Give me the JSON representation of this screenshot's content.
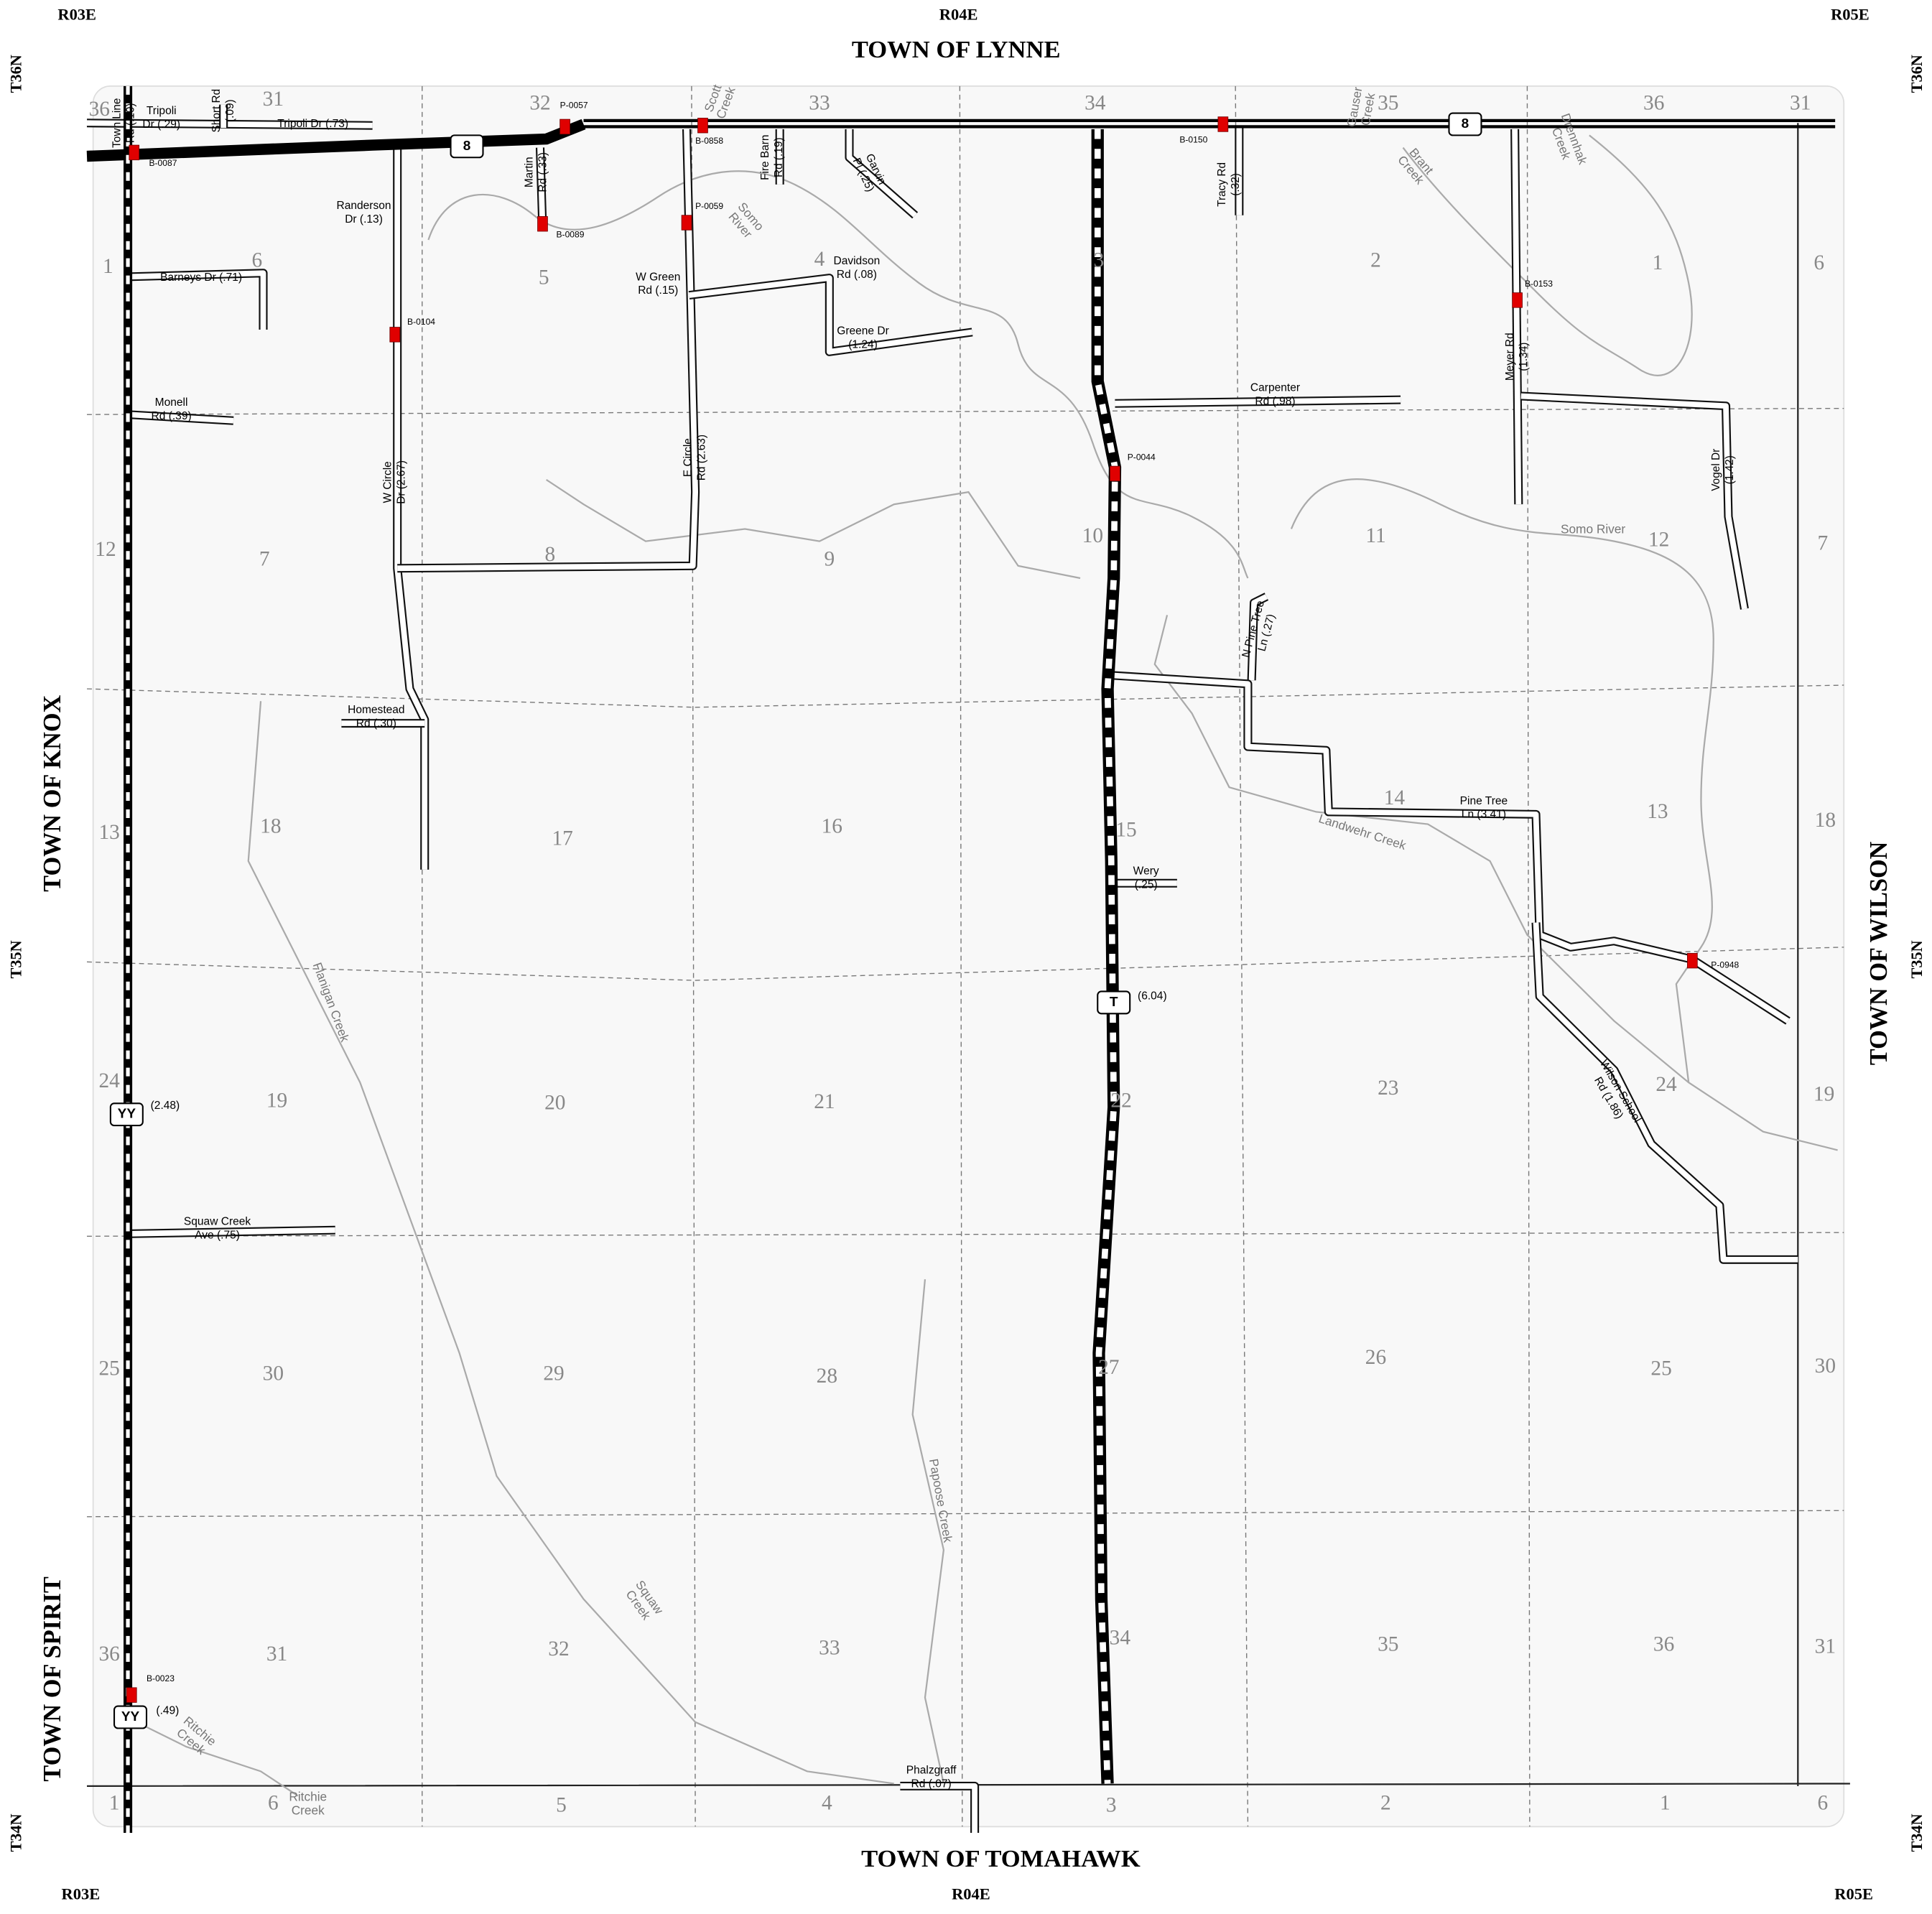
{
  "corner_labels": [
    "R03E",
    "R04E",
    "R05E",
    "T36N",
    "T35N",
    "T34N",
    "T36N",
    "T35N",
    "T34N",
    "R03E",
    "R04E",
    "R05E"
  ],
  "towns": [
    "TOWN OF LYNNE",
    "TOWN OF TOMAHAWK",
    "TOWN OF KNOX",
    "TOWN OF SPIRIT",
    "TOWN OF WILSON"
  ],
  "sections": [
    "36",
    "31",
    "32",
    "33",
    "34",
    "35",
    "36",
    "31",
    "1",
    "6",
    "5",
    "4",
    "3",
    "2",
    "1",
    "6",
    "12",
    "7",
    "8",
    "9",
    "10",
    "11",
    "12",
    "7",
    "13",
    "18",
    "17",
    "16",
    "15",
    "14",
    "13",
    "18",
    "24",
    "19",
    "20",
    "21",
    "22",
    "23",
    "24",
    "19",
    "25",
    "30",
    "29",
    "28",
    "27",
    "26",
    "25",
    "30",
    "36",
    "31",
    "32",
    "33",
    "34",
    "35",
    "36",
    "31",
    "1",
    "6",
    "5",
    "4",
    "3",
    "2",
    "1",
    "6"
  ],
  "road_labels": [
    [
      "Tripoli",
      "Dr (.29)"
    ],
    [
      "Tripoli Dr (.73)"
    ],
    [
      "Short Rd",
      "(.09)"
    ],
    [
      "Town Line",
      "Rd (.10)"
    ],
    [
      "Randerson",
      "Dr (.13)"
    ],
    [
      "Martin",
      "Rd (.33)"
    ],
    [
      "Fire Barn",
      "Rd (.19)"
    ],
    [
      "Garvin",
      "Pl (.25)"
    ],
    [
      "Tracy Rd",
      "(.32)"
    ],
    [
      "Barneys Dr (.71)"
    ],
    [
      "W Green",
      "Rd (.15)"
    ],
    [
      "Davidson",
      "Rd (.08)"
    ],
    [
      "Greene Dr",
      "(1.24)"
    ],
    [
      "Monell",
      "Rd (.39)"
    ],
    [
      "Carpenter",
      "Rd (.98)"
    ],
    [
      "Meyer Rd",
      "(1.34)"
    ],
    [
      "Vogel Dr",
      "(1.42)"
    ],
    [
      "W Circle",
      "Dr (2.67)"
    ],
    [
      "E Circle",
      "Rd (2.63)"
    ],
    [
      "N Pine Tree",
      "Ln (.27)"
    ],
    [
      "Homestead",
      "Rd (.30)"
    ],
    [
      "Pine Tree",
      "Ln (3.41)"
    ],
    [
      "Wery",
      "(.25)"
    ],
    [
      "Wilson School",
      "Rd (1.86)"
    ],
    [
      "Squaw Creek",
      "Ave (.75)"
    ],
    [
      "Phalzgraff",
      "Rd (.07)"
    ],
    [
      "(6.04)"
    ],
    [
      "(2.48)"
    ],
    [
      "(.49)"
    ]
  ],
  "structures": [
    "B-0087",
    "P-0057",
    "B-0858",
    "B-0150",
    "B-0089",
    "P-0059",
    "B-0104",
    "B-0153",
    "P-0044",
    "P-0948",
    "B-0023"
  ],
  "waters": [
    [
      "Scott",
      "Creek"
    ],
    [
      "Somo",
      "River"
    ],
    [
      "Gauser",
      "Creek"
    ],
    [
      "Brant",
      "Creek"
    ],
    [
      "Drennhak",
      "Creek"
    ],
    [
      "Somo River"
    ],
    [
      "Landwehr Creek"
    ],
    [
      "Flanigan Creek"
    ],
    [
      "Squaw",
      "Creek"
    ],
    [
      "Papoose Creek"
    ],
    [
      "Ritchie",
      "Creek"
    ],
    [
      "Ritchie",
      "Creek"
    ]
  ],
  "shields": [
    "8",
    "8",
    "T",
    "YY",
    "YY"
  ]
}
